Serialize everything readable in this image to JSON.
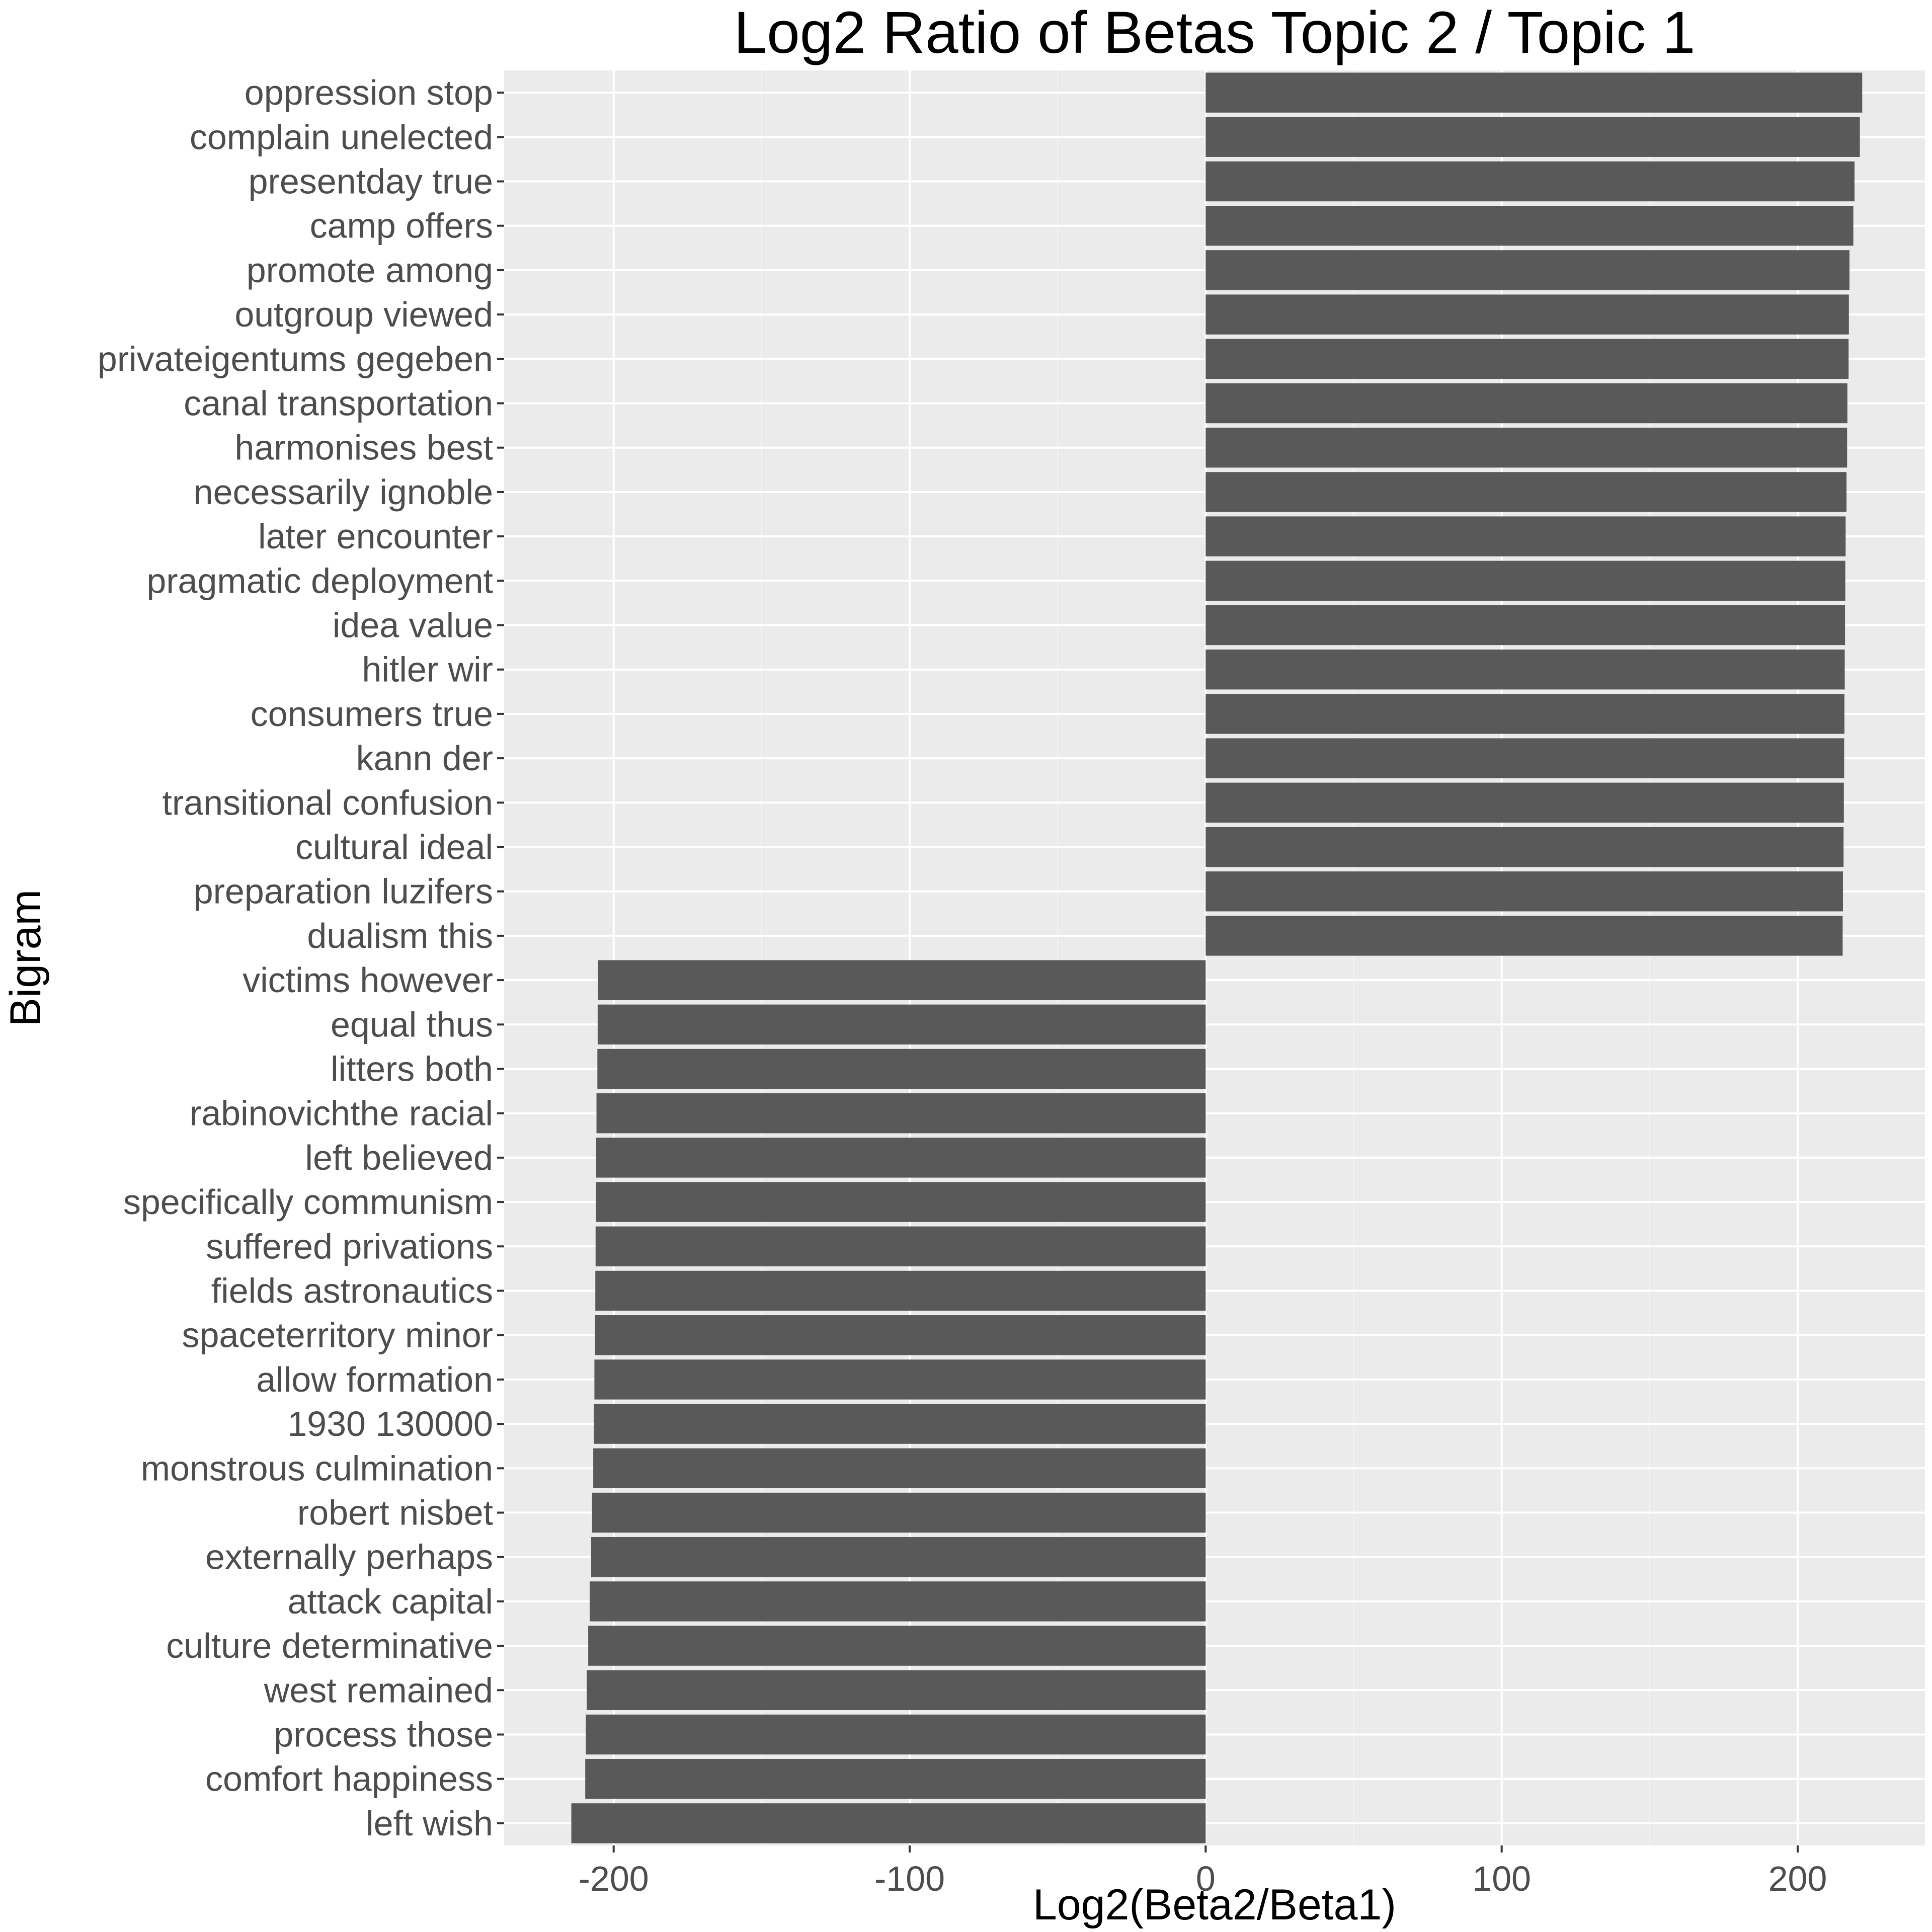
{
  "chart_data": {
    "type": "bar",
    "orientation": "horizontal",
    "title": "Log2 Ratio of Betas Topic 2 / Topic 1",
    "xlabel": "Log2(Beta2/Beta1)",
    "ylabel": "Bigram",
    "xlim": [
      -237,
      243
    ],
    "x_ticks": [
      -200,
      -100,
      0,
      100,
      200
    ],
    "x_tick_labels": [
      "-200",
      "-100",
      "0",
      "100",
      "200"
    ],
    "grid": true,
    "legend": "none",
    "categories": [
      "oppression stop",
      "complain unelected",
      "presentday true",
      "camp offers",
      "promote among",
      "outgroup viewed",
      "privateigentums gegeben",
      "canal transportation",
      "harmonises best",
      "necessarily ignoble",
      "later encounter",
      "pragmatic deployment",
      "idea value",
      "hitler wir",
      "consumers true",
      "kann der",
      "transitional confusion",
      "cultural ideal",
      "preparation luzifers",
      "dualism this",
      "victims however",
      "equal thus",
      "litters both",
      "rabinovichthe racial",
      "left believed",
      "specifically communism",
      "suffered privations",
      "fields astronautics",
      "spaceterritory minor",
      "allow formation",
      "1930 130000",
      "monstrous culmination",
      "robert nisbet",
      "externally perhaps",
      "attack capital",
      "culture determinative",
      "west remained",
      "process those",
      "comfort happiness",
      "left wish"
    ],
    "values": [
      221.8,
      221.0,
      219.2,
      218.8,
      217.5,
      217.3,
      217.2,
      216.8,
      216.7,
      216.5,
      216.2,
      216.1,
      216.0,
      215.9,
      215.8,
      215.7,
      215.6,
      215.5,
      215.3,
      215.2,
      -205.3,
      -205.4,
      -205.5,
      -205.8,
      -205.9,
      -206.0,
      -206.1,
      -206.2,
      -206.3,
      -206.5,
      -206.7,
      -206.9,
      -207.3,
      -207.6,
      -208.1,
      -208.6,
      -209.1,
      -209.4,
      -209.6,
      -214.3
    ],
    "colors": {
      "bar": "#595959",
      "panel": "#ebebeb",
      "grid_major": "#ffffff",
      "grid_minor": "#f5f5f5",
      "text": "#4d4d4d"
    }
  }
}
